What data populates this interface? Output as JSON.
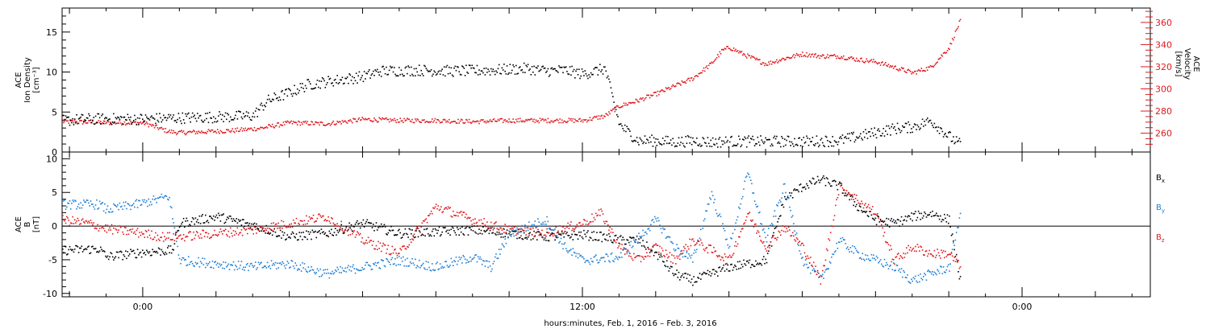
{
  "colors": {
    "black": "#000000",
    "red": "#e0191e",
    "blue": "#1f7fd4"
  },
  "xaxis": {
    "label": "hours:minutes, Feb.  1, 2016 – Feb.  3, 2016",
    "range_hours": [
      -2.2,
      27.5
    ],
    "major_ticks": [
      0,
      12,
      24
    ],
    "tick_labels": [
      "0:00",
      "12:00",
      "0:00"
    ]
  },
  "chart_data": [
    {
      "type": "scatter",
      "panel": "top",
      "ylabel_left": [
        "ACE",
        "Ion Density",
        "[cm⁻³]"
      ],
      "ylabel_right": [
        "ACE",
        "Velocity",
        "[km/s]"
      ],
      "ylim_left": [
        0,
        18
      ],
      "yticks_left": [
        0,
        5,
        10,
        15
      ],
      "ylim_right": [
        243,
        373
      ],
      "yticks_right": [
        260,
        280,
        300,
        320,
        340,
        360
      ],
      "series": [
        {
          "axis": "left",
          "color": "black",
          "x": [
            -2.2,
            -1.5,
            -0.8,
            0,
            0.7,
            1.5,
            2.5,
            3,
            3.4,
            4,
            4.5,
            5.2,
            6,
            6.5,
            7.5,
            8.5,
            9.5,
            10.5,
            11,
            11.5,
            12,
            12.6,
            13,
            13.5,
            14,
            14.5,
            15,
            15.5,
            16,
            17,
            18,
            19,
            19.5,
            20,
            20.5,
            21,
            21.5,
            22,
            22.3
          ],
          "y": [
            4,
            4.2,
            4.2,
            4.2,
            4.3,
            4.4,
            4.5,
            4.6,
            6.5,
            7.5,
            8.5,
            9,
            9.5,
            10.2,
            10.3,
            10.2,
            10.3,
            10.5,
            10.2,
            10.3,
            9.8,
            10.5,
            3.5,
            1.5,
            1.5,
            1.3,
            1.5,
            1.3,
            1.4,
            1.4,
            1.4,
            1.5,
            2,
            2.5,
            3,
            3.2,
            4,
            2,
            1
          ]
        },
        {
          "axis": "right",
          "color": "red",
          "x": [
            -2.2,
            -1,
            0,
            0.7,
            1,
            1.8,
            2.5,
            3.2,
            4,
            5,
            6,
            7,
            8,
            9,
            10,
            11,
            12,
            12.6,
            13,
            13.5,
            14,
            14.5,
            15,
            15.5,
            15.8,
            16,
            16.5,
            17,
            17.5,
            18,
            18.5,
            19,
            19.5,
            20,
            20.5,
            21,
            21.5,
            22,
            22.3
          ],
          "y": [
            271,
            270,
            270,
            262,
            261,
            262,
            263,
            265,
            270,
            269,
            273,
            272,
            272,
            271,
            272,
            272,
            272,
            276,
            285,
            290,
            296,
            303,
            310,
            323,
            335,
            338,
            330,
            323,
            328,
            332,
            330,
            330,
            327,
            325,
            320,
            315,
            320,
            338,
            362
          ]
        }
      ]
    },
    {
      "type": "scatter",
      "panel": "bottom",
      "ylabel_left": [
        "ACE",
        "B",
        "[nT]"
      ],
      "ylim": [
        -10.5,
        11
      ],
      "yticks": [
        -10,
        -5,
        0,
        5,
        10
      ],
      "zero_line": 0,
      "legend": [
        "B",
        "B",
        "B"
      ],
      "legend_subscripts": [
        "x",
        "y",
        "z"
      ],
      "series": [
        {
          "name": "Bx",
          "color": "black",
          "x": [
            -2.2,
            -1.2,
            -1,
            0,
            0.8,
            1,
            2,
            3,
            4,
            5,
            6,
            7,
            8,
            9,
            10,
            11,
            12,
            12.5,
            13,
            13.5,
            14,
            14.5,
            15,
            16,
            17,
            17.5,
            18,
            18.5,
            19,
            19.5,
            20,
            20.5,
            21,
            21.5,
            22,
            22.3
          ],
          "y": [
            -3.5,
            -3.3,
            -4.5,
            -3.8,
            -3.5,
            0.5,
            1.5,
            0.2,
            -1.5,
            -1,
            0.5,
            -1,
            -0.8,
            -0.5,
            -1,
            -1.5,
            -1.2,
            -1.5,
            -2,
            -2,
            -4,
            -7,
            -8,
            -6,
            -5,
            4,
            6,
            7,
            6,
            3,
            1,
            0.5,
            1.5,
            2,
            1,
            -8
          ]
        },
        {
          "name": "By",
          "color": "blue",
          "x": [
            -2.2,
            -1.2,
            -1,
            0,
            0.7,
            1,
            2,
            3,
            4,
            5,
            6,
            7,
            8,
            9,
            9.5,
            10,
            11,
            11.5,
            12,
            13,
            14,
            14.5,
            15,
            15.5,
            16,
            16.5,
            17,
            17.5,
            18,
            18.5,
            19,
            19.5,
            20,
            20.5,
            21,
            21.5,
            22,
            22.3
          ],
          "y": [
            3.3,
            3.3,
            2.5,
            3.5,
            4.5,
            -5,
            -5.5,
            -6,
            -5.5,
            -7,
            -6,
            -5,
            -6,
            -4.5,
            -6,
            -1,
            1,
            -3,
            -5,
            -4.5,
            1,
            -3,
            -5,
            5,
            -3,
            8,
            -2,
            6,
            -5,
            -8,
            -2,
            -4,
            -5,
            -6,
            -8,
            -7,
            -6,
            2
          ]
        },
        {
          "name": "Bz",
          "color": "red",
          "x": [
            -2.2,
            -1.5,
            -1,
            0,
            0.5,
            1,
            2,
            3,
            4,
            5,
            6,
            7,
            8,
            9,
            10,
            11,
            12,
            12.5,
            13,
            13.5,
            14,
            14.5,
            15,
            16,
            16.5,
            17,
            17.5,
            18,
            18.5,
            19,
            19.5,
            20,
            20.5,
            21,
            21.5,
            22,
            22.3
          ],
          "y": [
            1,
            0.5,
            -0.3,
            -1,
            -1.5,
            -1.5,
            -1,
            -0.5,
            0.5,
            1.5,
            -2,
            -4,
            3,
            1,
            -0.5,
            -1,
            0.5,
            2,
            -3,
            -5,
            -3,
            -5,
            -2,
            -5,
            2,
            -3,
            0,
            -3,
            -8,
            6,
            4,
            2,
            -5,
            -3,
            -4,
            -4,
            -6
          ]
        }
      ]
    }
  ]
}
